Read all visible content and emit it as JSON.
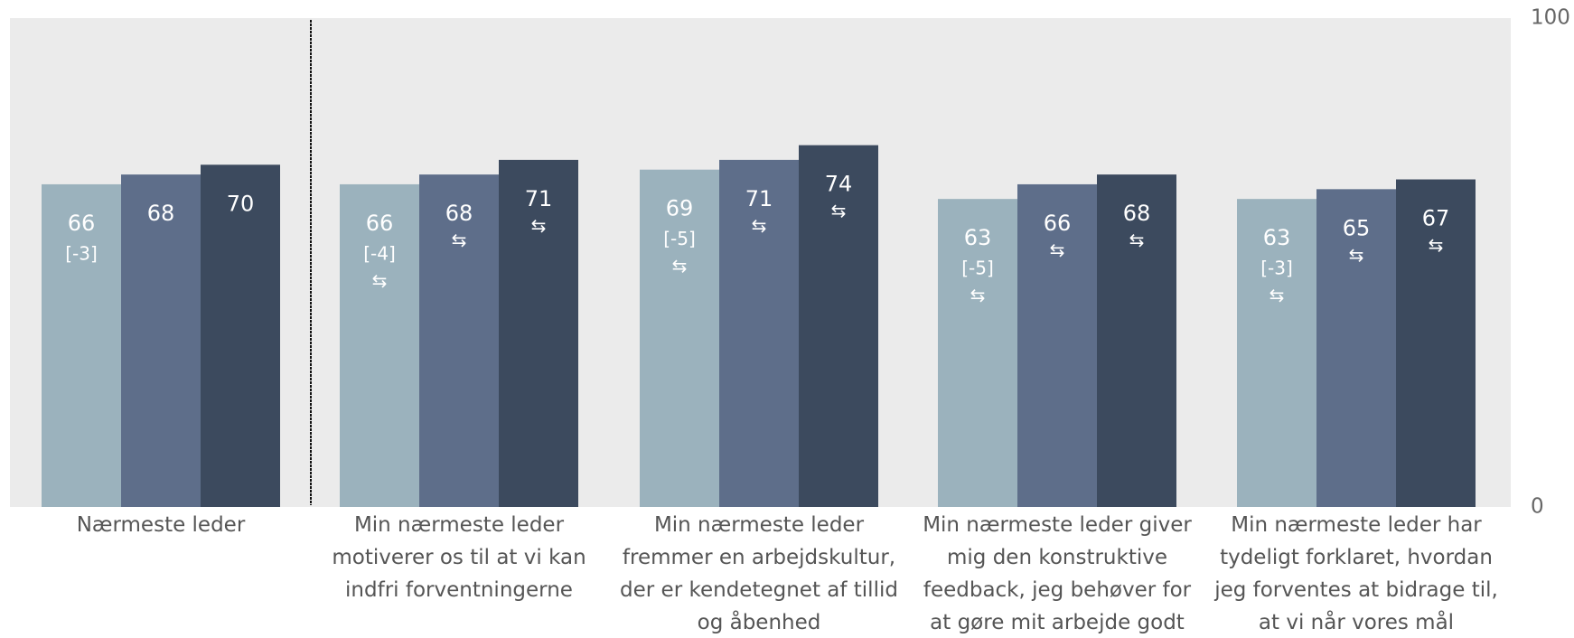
{
  "chart_data": {
    "type": "bar",
    "categories": [
      "Nærmeste leder",
      "Min nærmeste leder motiverer os til at vi kan indfri forventningerne",
      "Min nærmeste leder fremmer en arbejdskultur, der er kendetegnet af tillid og åbenhed",
      "Min nærmeste leder giver mig den konstruktive feedback, jeg behøver for at gøre mit arbejde godt",
      "Min nærmeste leder har tydeligt forklaret, hvordan jeg forventes at bidrage til, at vi når vores mål"
    ],
    "series": [
      {
        "color": "#9bb2bd",
        "values": [
          66,
          66,
          69,
          63,
          63
        ],
        "diff_labels": [
          "[-3]",
          "[-4]",
          "[-5]",
          "[-5]",
          "[-3]"
        ],
        "trend_symbols": [
          null,
          "⇆",
          "⇆",
          "⇆",
          "⇆"
        ]
      },
      {
        "color": "#5e6e8a",
        "values": [
          68,
          68,
          71,
          66,
          65
        ],
        "trend_symbols": [
          null,
          "⇆",
          "⇆",
          "⇆",
          "⇆"
        ]
      },
      {
        "color": "#3c4a5e",
        "values": [
          70,
          71,
          74,
          68,
          67
        ],
        "trend_symbols": [
          null,
          "⇆",
          "⇆",
          "⇆",
          "⇆"
        ]
      }
    ],
    "ylim": [
      0,
      100
    ],
    "yticks": [
      0,
      100
    ]
  }
}
